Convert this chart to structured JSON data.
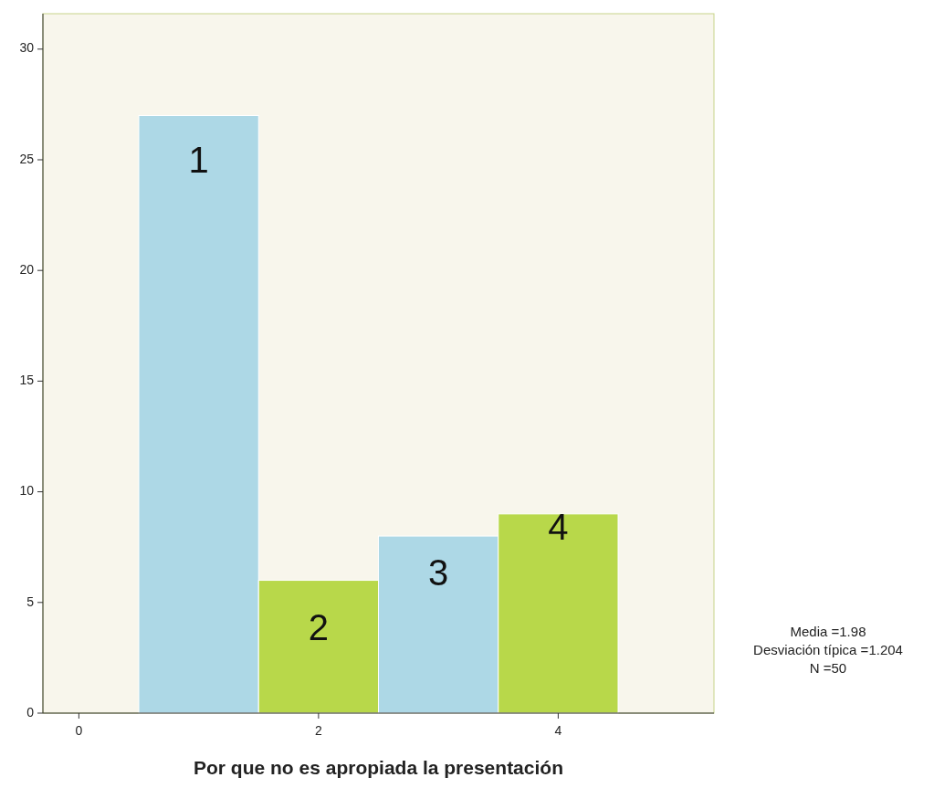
{
  "chart_data": {
    "type": "histogram",
    "xlabel": "Por que no es apropiada la presentación",
    "bins": [
      0.5,
      1.5,
      2.5,
      3.5,
      4.5
    ],
    "values": [
      27,
      6,
      8,
      9
    ],
    "colors": [
      "#add8e6",
      "#b8d84a",
      "#add8e6",
      "#b8d84a"
    ],
    "xlim": [
      -0.3,
      5.3
    ],
    "xticks": [
      0,
      2,
      4
    ],
    "ylim": [
      0,
      31.6
    ],
    "yticks": [
      0,
      5,
      10,
      15,
      20,
      25,
      30
    ],
    "grid": false,
    "annotations": [
      "1",
      "2",
      "3",
      "4",
      "Media =1.98",
      "Desviación típica =1.204",
      "N =50"
    ]
  }
}
